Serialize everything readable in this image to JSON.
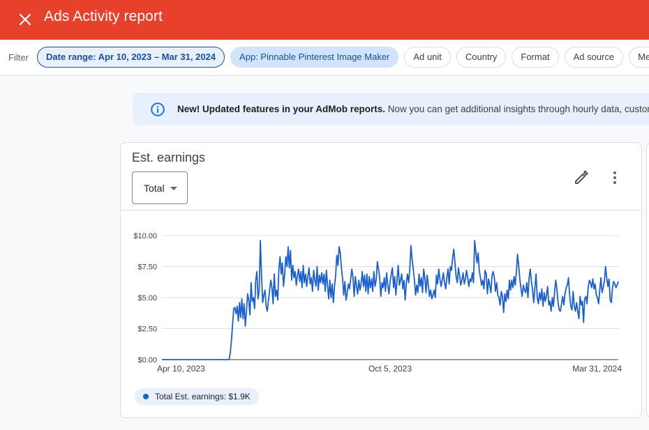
{
  "header": {
    "title": "Ads Activity report",
    "color": "#e8412b"
  },
  "filters": {
    "label": "Filter",
    "chips": [
      "Date range: Apr 10, 2023 – Mar 31, 2024",
      "App: Pinnable Pinterest Image Maker",
      "Ad unit",
      "Country",
      "Format",
      "Ad source",
      "Mediation"
    ]
  },
  "banner": {
    "bold": "New! Updated features in your AdMob reports.",
    "text": " Now you can get additional insights through hourly data, custom date ranges and more."
  },
  "card": {
    "title": "Est. earnings",
    "select_value": "Total",
    "legend": "Total Est. earnings: $1.9K"
  },
  "chart_data": {
    "type": "line",
    "x_range": [
      "2023-04-10",
      "2024-03-31"
    ],
    "ylim": [
      0,
      10
    ],
    "y_ticks": [
      "$0.00",
      "$2.50",
      "$5.00",
      "$7.50",
      "$10.00"
    ],
    "y_tick_values": [
      0,
      2.5,
      5,
      7.5,
      10
    ],
    "x_ticks": [
      "Apr 10, 2023",
      "Oct 5, 2023",
      "Mar 31, 2024"
    ],
    "x_tick_positions": [
      0,
      0.5,
      1
    ],
    "grid": true,
    "legend_position": "bottom-left",
    "color": "#1a5ed4",
    "series": [
      {
        "name": "Total Est. earnings",
        "values": [
          0,
          0,
          0,
          0,
          0,
          0,
          0,
          0,
          0,
          0,
          0,
          0,
          0,
          0,
          0,
          0,
          0,
          0,
          0,
          0,
          0,
          0,
          0,
          0,
          0,
          0,
          0,
          0,
          0,
          0,
          0,
          0,
          0,
          0,
          0,
          0,
          0,
          0,
          0,
          0,
          0,
          0,
          0,
          0,
          0,
          0,
          0,
          0,
          0,
          0,
          0,
          0,
          0,
          0,
          0,
          0,
          0,
          0,
          0,
          0.5,
          1.5,
          2.8,
          4.1,
          4.2,
          3.7,
          4.3,
          3.1,
          4.6,
          3.4,
          4.9,
          3.3,
          4.5,
          2.7,
          3.9,
          5.3,
          4.8,
          3.6,
          6.2,
          4.7,
          5.0,
          4.1,
          6.4,
          7.1,
          4.9,
          5.6,
          9.6,
          6.8,
          4.6,
          5.2,
          5.6,
          4.3,
          3.9,
          4.8,
          5.6,
          6.4,
          5.8,
          4.5,
          6.9,
          5.1,
          5.6,
          4.8,
          7.3,
          8.3,
          6.9,
          7.8,
          5.9,
          6.9,
          8.3,
          7.5,
          9.1,
          7.4,
          8.8,
          6.4,
          7.6,
          6.6,
          7.1,
          6.0,
          6.8,
          7.3,
          6.3,
          7.1,
          5.8,
          7.6,
          6.2,
          6.9,
          5.9,
          6.7,
          7.4,
          6.1,
          6.6,
          5.5,
          7.2,
          6.4,
          5.9,
          7.5,
          5.6,
          6.8,
          6.2,
          7.0,
          6.1,
          6.9,
          5.5,
          7.2,
          6.0,
          4.9,
          6.4,
          5.0,
          6.1,
          4.6,
          5.9,
          6.8,
          8.4,
          7.6,
          9.1,
          8.6,
          7.4,
          6.5,
          5.2,
          6.3,
          4.8,
          5.4,
          6.1,
          5.7,
          6.5,
          7.3,
          6.6,
          5.1,
          6.7,
          5.9,
          5.3,
          6.4,
          5.6,
          6.1,
          7.1,
          5.9,
          6.8,
          5.5,
          6.9,
          5.3,
          6.7,
          5.8,
          6.5,
          5.5,
          7.1,
          5.9,
          6.4,
          7.9,
          7.3,
          6.6,
          5.1,
          6.2,
          5.8,
          6.6,
          5.5,
          7.0,
          6.0,
          5.3,
          6.3,
          6.9,
          7.4,
          5.8,
          6.7,
          5.2,
          6.4,
          7.6,
          6.0,
          6.4,
          6.9,
          5.7,
          6.4,
          4.8,
          6.2,
          6.9,
          6.2,
          7.3,
          9.2,
          8.1,
          7.3,
          6.4,
          5.2,
          6.0,
          5.4,
          6.9,
          5.9,
          6.6,
          5.4,
          7.3,
          6.6,
          5.4,
          6.8,
          6.0,
          5.1,
          5.6,
          4.9,
          5.2,
          5.6,
          5.0,
          6.8,
          6.1,
          7.3,
          6.5,
          5.9,
          6.4,
          7.0,
          6.2,
          5.7,
          6.6,
          7.3,
          6.1,
          7.5,
          7.2,
          8.2,
          8.9,
          7.8,
          6.7,
          6.2,
          7.4,
          6.8,
          6.0,
          6.4,
          7.0,
          6.1,
          6.5,
          7.2,
          6.6,
          5.9,
          6.5,
          6.3,
          7.0,
          6.2,
          9.6,
          8.7,
          7.8,
          8.6,
          7.2,
          6.6,
          6.0,
          6.4,
          5.7,
          7.2,
          6.9,
          5.3,
          6.5,
          6.0,
          5.4,
          6.8,
          7.1,
          6.6,
          5.5,
          6.2,
          5.2,
          5.0,
          4.4,
          5.5,
          5.1,
          3.8,
          5.3,
          4.7,
          5.6,
          4.9,
          6.4,
          5.6,
          6.4,
          5.8,
          6.7,
          6.0,
          7.0,
          8.5,
          7.6,
          6.5,
          5.7,
          5.1,
          6.0,
          5.6,
          5.4,
          6.2,
          5.0,
          6.6,
          7.3,
          6.3,
          5.6,
          4.6,
          5.8,
          6.9,
          5.0,
          4.5,
          5.4,
          4.8,
          5.7,
          4.3,
          5.4,
          4.7,
          5.2,
          5.9,
          4.4,
          4.7,
          3.9,
          5.0,
          4.3,
          5.4,
          6.4,
          5.7,
          4.6,
          4.0,
          3.9,
          4.5,
          5.1,
          4.4,
          5.3,
          5.8,
          6.0,
          6.6,
          5.2,
          4.3,
          4.0,
          5.5,
          4.3,
          3.9,
          4.6,
          3.9,
          3.3,
          5.1,
          4.4,
          4.7,
          3.0,
          4.9,
          5.1,
          4.5,
          5.8,
          6.4,
          6.2,
          5.8,
          6.5,
          5.7,
          6.1,
          5.2,
          5.0,
          4.5,
          5.6,
          6.6,
          5.4,
          5.8,
          6.3,
          7.5,
          6.6,
          5.9,
          6.5,
          4.8,
          4.6,
          5.8,
          6.3,
          6.1,
          5.8,
          6.0,
          6.3
        ]
      }
    ]
  }
}
